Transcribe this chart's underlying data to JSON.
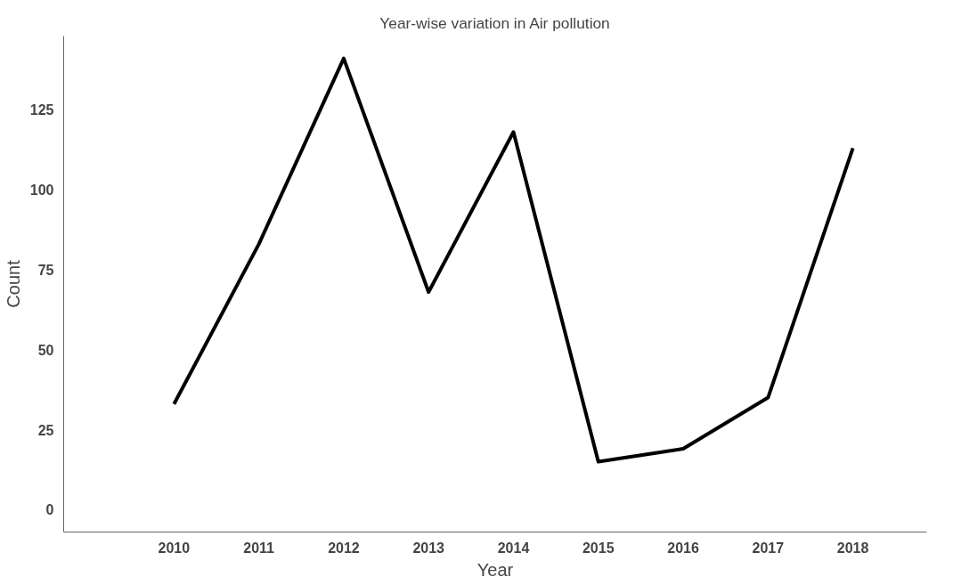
{
  "chart_data": {
    "type": "line",
    "title": "Year-wise variation in Air pollution",
    "xlabel": "Year",
    "ylabel": "Count",
    "categories": [
      "2010",
      "2011",
      "2012",
      "2013",
      "2014",
      "2015",
      "2016",
      "2017",
      "2018"
    ],
    "series": [
      {
        "color": "#000000",
        "values": [
          33,
          83,
          141,
          68,
          118,
          15,
          19,
          35,
          113
        ]
      }
    ],
    "ylim": [
      -7,
      148
    ],
    "yticks": [
      0,
      25,
      50,
      75,
      100,
      125
    ],
    "marker": "none",
    "line_style": "solid"
  }
}
